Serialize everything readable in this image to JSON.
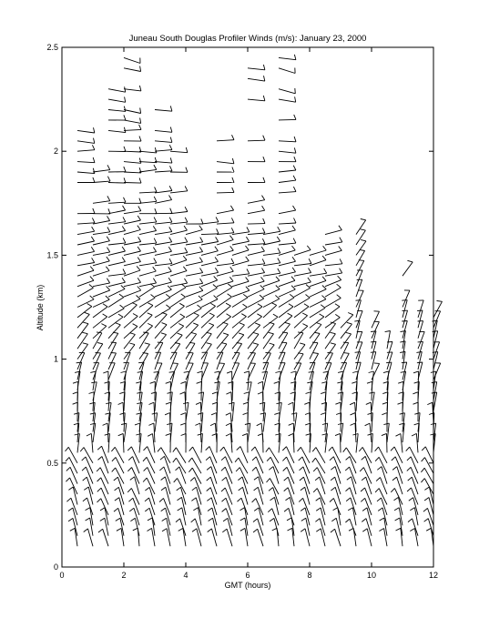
{
  "chart_data": {
    "type": "wind-barb",
    "title": "Juneau South Douglas Profiler Winds (m/s):   January 23, 2000",
    "xlabel": "GMT (hours)",
    "ylabel": "Altitude (km)",
    "xlim": [
      0,
      12
    ],
    "ylim": [
      0,
      2.5
    ],
    "xticks": [
      0,
      2,
      4,
      6,
      8,
      10,
      12
    ],
    "yticks": [
      0,
      0.5,
      1,
      1.5,
      2,
      2.5
    ],
    "ytick_labels": [
      "0",
      "0.5",
      "1",
      "1.5",
      "2",
      "2.5"
    ],
    "grid": false,
    "times": [
      0.0,
      0.5,
      1.0,
      1.5,
      2.0,
      2.5,
      3.0,
      3.5,
      4.0,
      4.5,
      5.0,
      5.5,
      6.0,
      6.5,
      7.0,
      7.5,
      8.0,
      8.5,
      9.0,
      9.5,
      10.0,
      10.5,
      11.0,
      11.5
    ],
    "heights": [
      0.1,
      0.15,
      0.2,
      0.25,
      0.3,
      0.35,
      0.4,
      0.45,
      0.5,
      0.55,
      0.6,
      0.65,
      0.7,
      0.75,
      0.8,
      0.85,
      0.9,
      0.95,
      1.0,
      1.05,
      1.1,
      1.15,
      1.2,
      1.25,
      1.3,
      1.35,
      1.4,
      1.45,
      1.5,
      1.55,
      1.6,
      1.65,
      1.7,
      1.75,
      1.8,
      1.85,
      1.9,
      1.95,
      2.0,
      2.05,
      2.1,
      2.15,
      2.2,
      2.25,
      2.3,
      2.35,
      2.4,
      2.45
    ],
    "profiles": [
      {
        "time": 0.0,
        "top": 2.1,
        "valid": []
      },
      {
        "time": 0.5,
        "top": 1.9,
        "valid": []
      },
      {
        "time": 1.0,
        "top": 2.3,
        "valid": []
      },
      {
        "time": 1.5,
        "top": 2.45,
        "valid": []
      },
      {
        "time": 2.0,
        "top": 2.0,
        "valid": []
      },
      {
        "time": 2.5,
        "top": 2.2,
        "valid": []
      },
      {
        "time": 3.0,
        "top": 2.0,
        "valid": []
      },
      {
        "time": 3.5,
        "top": 1.65,
        "valid": []
      },
      {
        "time": 4.0,
        "top": 1.65,
        "valid": []
      },
      {
        "time": 4.5,
        "top": 2.05,
        "valid": []
      },
      {
        "time": 5.0,
        "top": 1.6,
        "valid": []
      },
      {
        "time": 5.5,
        "top": 2.45,
        "valid": []
      },
      {
        "time": 6.0,
        "top": 1.6,
        "valid": []
      },
      {
        "time": 6.5,
        "top": 2.45,
        "valid": []
      },
      {
        "time": 7.0,
        "top": 1.5,
        "valid": []
      },
      {
        "time": 7.5,
        "top": 1.5,
        "valid": []
      },
      {
        "time": 8.0,
        "top": 1.6,
        "valid": []
      },
      {
        "time": 8.5,
        "top": 1.15,
        "valid": []
      },
      {
        "time": 9.0,
        "top": 1.6,
        "valid": []
      },
      {
        "time": 9.5,
        "top": 1.15,
        "valid": []
      },
      {
        "time": 10.0,
        "top": 1.05,
        "valid": []
      },
      {
        "time": 10.5,
        "top": 1.4,
        "valid": []
      },
      {
        "time": 11.0,
        "top": 1.2,
        "valid": []
      },
      {
        "time": 11.5,
        "top": 1.2,
        "valid": []
      }
    ]
  }
}
